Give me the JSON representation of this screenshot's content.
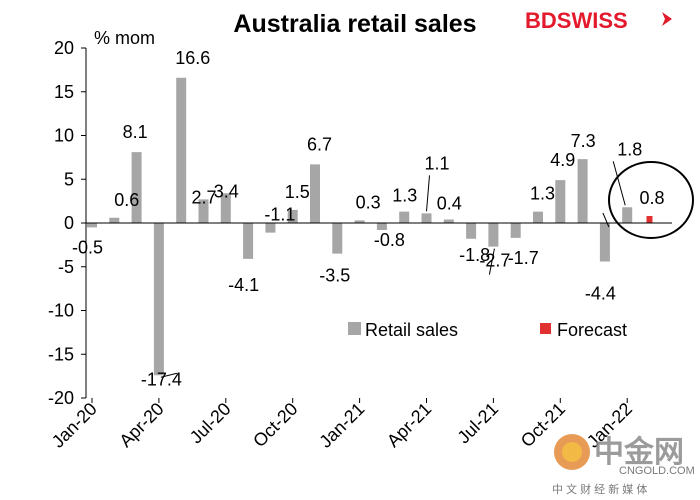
{
  "chart_data": {
    "type": "bar",
    "title": "Australia retail sales",
    "ylabel": "% mom",
    "ylim": [
      -20,
      20
    ],
    "yticks": [
      -20,
      -15,
      -10,
      -5,
      0,
      5,
      10,
      15,
      20
    ],
    "x_tick_labels": [
      "Jan-20",
      "Apr-20",
      "Jul-20",
      "Oct-20",
      "Jan-21",
      "Apr-21",
      "Jul-21",
      "Oct-21",
      "Jan-22"
    ],
    "grid": false,
    "legend_position": "bottom-right",
    "series": [
      {
        "name": "Retail sales",
        "color": "#a6a6a6",
        "categories": [
          "Jan-20",
          "Feb-20",
          "Mar-20",
          "Apr-20",
          "May-20",
          "Jun-20",
          "Jul-20",
          "Aug-20",
          "Sep-20",
          "Oct-20",
          "Nov-20",
          "Dec-20",
          "Jan-21",
          "Feb-21",
          "Mar-21",
          "Apr-21",
          "May-21",
          "Jun-21",
          "Jul-21",
          "Aug-21",
          "Sep-21",
          "Oct-21",
          "Nov-21",
          "Dec-21",
          "Jan-22"
        ],
        "values": [
          -0.5,
          0.6,
          8.1,
          -17.4,
          16.6,
          2.7,
          3.4,
          -4.1,
          -1.1,
          1.5,
          6.7,
          -3.5,
          0.3,
          -0.8,
          1.3,
          1.1,
          0.4,
          -1.8,
          -2.7,
          -1.7,
          1.3,
          4.9,
          7.3,
          -4.4,
          1.8
        ],
        "data_labels": [
          "-0.5",
          "0.6",
          "8.1",
          "-17.4",
          "16.6",
          "2.7",
          "3.4",
          "-4.1",
          "-1.1",
          "1.5",
          "6.7",
          "-3.5",
          "0.3",
          "-0.8",
          "1.3",
          "1.1",
          "0.4",
          "-1.8",
          "-2.7",
          "-1.7",
          "1.3",
          "4.9",
          "7.3",
          "-4.4",
          "1.8"
        ]
      },
      {
        "name": "Forecast",
        "color": "#e03030",
        "categories": [
          "Feb-22"
        ],
        "values": [
          0.8
        ],
        "data_labels": [
          "0.8"
        ]
      }
    ]
  },
  "logo": {
    "text_part1": "BD",
    "text_part2": "SWISS",
    "color_part1": "#e3192c",
    "color_part2": "#e3192c"
  },
  "watermark": {
    "big_text": "中金网",
    "small_text": "CNGOLD.COM",
    "tagline": "中 文 财 经 新 媒 体"
  }
}
